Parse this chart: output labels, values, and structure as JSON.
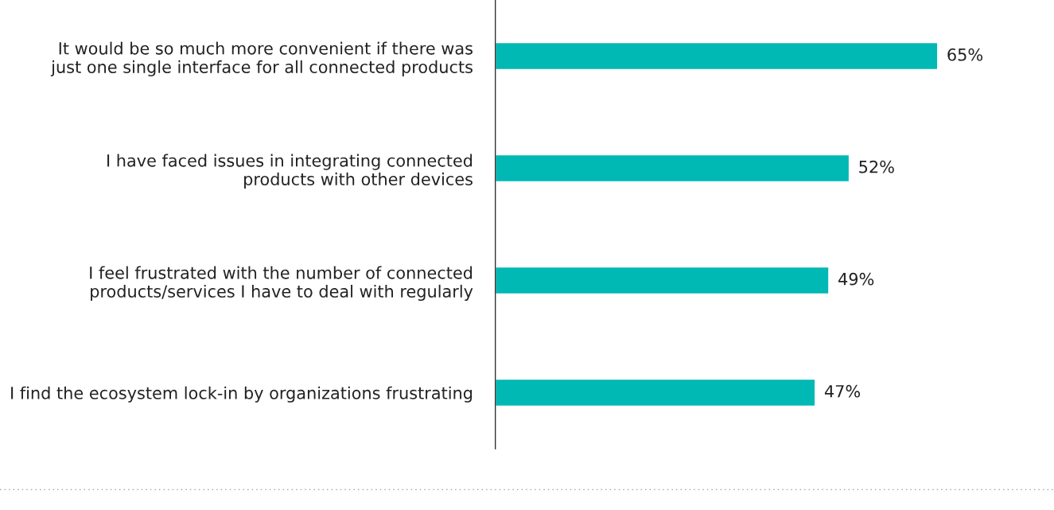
{
  "chart_data": {
    "type": "bar",
    "orientation": "horizontal",
    "categories": [
      "It would be so much more convenient if there was\njust one single interface for all connected products",
      "I have faced issues in integrating connected\nproducts with other devices",
      "I feel frustrated with the number of connected\nproducts/services I have to deal with regularly",
      "I find the ecosystem lock-in by organizations frustrating"
    ],
    "values": [
      65,
      52,
      49,
      47
    ],
    "value_labels": [
      "65%",
      "52%",
      "49%",
      "47%"
    ],
    "color": "#00b8b4",
    "grid": false,
    "legend": false
  }
}
